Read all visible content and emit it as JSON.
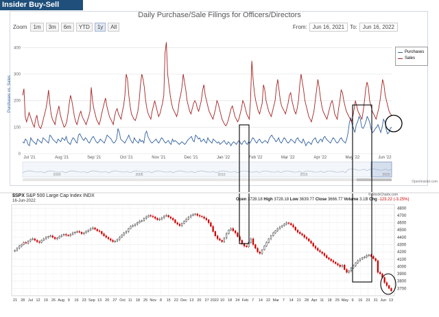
{
  "header": {
    "title": "Insider Buy-Sell Charts -"
  },
  "top_chart": {
    "title": "Daily Purchase/Sale Filings for Officers/Directors",
    "zoom_label": "Zoom",
    "zoom_buttons": [
      "1m",
      "3m",
      "6m",
      "YTD",
      "1y",
      "All"
    ],
    "zoom_selected": "1y",
    "from_label": "From:",
    "from_value": "Jun 16, 2021",
    "to_label": "To:",
    "to_value": "Jun 16, 2022",
    "ylabel": "Purchases vs. Sales",
    "source": "OpenInsider.com",
    "navigator_years": [
      "2000",
      "2005",
      "2010",
      "2015",
      "2020"
    ],
    "colors": {
      "purchases": "#2f5f9e",
      "sales": "#a51f1f"
    }
  },
  "lower_chart": {
    "symbol": "$SPX",
    "name": "S&P 500 Large Cap Index",
    "exchange": "INDX",
    "date": "16-Jun-2022",
    "open_label": "Open",
    "open": "3728.18",
    "high_label": "High",
    "high": "3728.18",
    "low_label": "Low",
    "low": "3639.77",
    "close_label": "Close",
    "close": "3666.77",
    "volume_label": "Volume",
    "volume": "3.1B",
    "change_label": "Chg",
    "change": "-123.22 (-3.25%)",
    "source": "© StockCharts.com",
    "colors": {
      "up": "#333333",
      "down": "#cc0000"
    }
  },
  "chart_data": [
    {
      "type": "line",
      "title": "Daily Purchase/Sale Filings for Officers/Directors",
      "ylabel": "Purchases vs. Sales",
      "ylim": [
        0,
        450
      ],
      "yticks": [
        0,
        100,
        200,
        300,
        400
      ],
      "x_ticks": [
        "Jul '21",
        "Aug '21",
        "Sep '21",
        "Oct '21",
        "Nov '21",
        "Dec '21",
        "Jan '22",
        "Feb '22",
        "Mar '22",
        "Apr '22",
        "May '22",
        "Jun '22"
      ],
      "legend": [
        "Purchases",
        "Sales"
      ],
      "legend_position": "top-right",
      "series": [
        {
          "name": "Purchases",
          "values": [
            45,
            40,
            55,
            50,
            35,
            30,
            60,
            50,
            45,
            40,
            35,
            55,
            50,
            45,
            40,
            60,
            55,
            50,
            45,
            40,
            70,
            65,
            55,
            50,
            45,
            40,
            55,
            50,
            45,
            60,
            55,
            50,
            65,
            45,
            40,
            35,
            50,
            60,
            55,
            45,
            40,
            70,
            75,
            65,
            55,
            50,
            60,
            55,
            45,
            40,
            50,
            60,
            65,
            55,
            45,
            40,
            45,
            55,
            50,
            45,
            40,
            55,
            70,
            65,
            60,
            55,
            45,
            40,
            45,
            55,
            95,
            80,
            55,
            50,
            45,
            40,
            50,
            60,
            70,
            55,
            45,
            40,
            60,
            50,
            45,
            40,
            55,
            45,
            50,
            40,
            75,
            85,
            65,
            55,
            45,
            40,
            45,
            50,
            55,
            45,
            40,
            50,
            60,
            55,
            45,
            40,
            45,
            50,
            40,
            35,
            55,
            45,
            50,
            45,
            40,
            35,
            40,
            45,
            40,
            35,
            40,
            50,
            55,
            60,
            65,
            50,
            45,
            70,
            65,
            55,
            60,
            45,
            50,
            55,
            45,
            40,
            60,
            50,
            45,
            40,
            55,
            50,
            45,
            40,
            45,
            35,
            40,
            45,
            50,
            40,
            35,
            45,
            40,
            30,
            40,
            45,
            40,
            35,
            45,
            50,
            40,
            35,
            45,
            50,
            40,
            35,
            45,
            40,
            50,
            60,
            55,
            45,
            40,
            50,
            55,
            45,
            40,
            45,
            50,
            45,
            40,
            55,
            65,
            70,
            60,
            55,
            45,
            50,
            60,
            45,
            40,
            50,
            60,
            55,
            45,
            40,
            45,
            55,
            50,
            45,
            40,
            55,
            60,
            50,
            45,
            40,
            55,
            45,
            30,
            40,
            45,
            40,
            35,
            50,
            55,
            60,
            45,
            40,
            50,
            55,
            45,
            60,
            65,
            55,
            50,
            45,
            40,
            50,
            60,
            55,
            45,
            40,
            45,
            55,
            60,
            50,
            45,
            40,
            55,
            80,
            120,
            135,
            110,
            95,
            80,
            110,
            120,
            140,
            130,
            100,
            95,
            105,
            120,
            140,
            130,
            115,
            90,
            80,
            85,
            95,
            100,
            110,
            95,
            80,
            100,
            130,
            120,
            90,
            75,
            80,
            95,
            100
          ]
        },
        {
          "name": "Sales",
          "values": [
            220,
            245,
            140,
            120,
            135,
            155,
            140,
            125,
            110,
            100,
            130,
            145,
            115,
            100,
            95,
            110,
            130,
            150,
            170,
            200,
            240,
            190,
            150,
            130,
            120,
            110,
            140,
            160,
            180,
            150,
            130,
            115,
            100,
            105,
            120,
            150,
            190,
            220,
            200,
            170,
            140,
            120,
            110,
            130,
            150,
            160,
            140,
            130,
            120,
            110,
            125,
            140,
            160,
            250,
            200,
            170,
            150,
            130,
            120,
            110,
            125,
            150,
            170,
            190,
            210,
            180,
            160,
            140,
            130,
            120,
            110,
            140,
            160,
            170,
            150,
            140,
            130,
            160,
            180,
            220,
            300,
            280,
            220,
            180,
            150,
            140,
            130,
            125,
            140,
            160,
            200,
            260,
            300,
            280,
            250,
            200,
            170,
            150,
            140,
            130,
            160,
            180,
            200,
            180,
            160,
            140,
            150,
            170,
            190,
            220,
            380,
            420,
            300,
            260,
            220,
            190,
            170,
            160,
            150,
            140,
            160,
            200,
            220,
            250,
            300,
            270,
            240,
            200,
            180,
            160,
            150,
            170,
            190,
            200,
            190,
            170,
            160,
            180,
            200,
            240,
            260,
            220,
            200,
            180,
            160,
            150,
            140,
            130,
            150,
            170,
            200,
            190,
            170,
            150,
            130,
            120,
            110,
            105,
            115,
            130,
            150,
            170,
            180,
            160,
            140,
            130,
            120,
            130,
            150,
            170,
            200,
            190,
            170,
            150,
            140,
            130,
            200,
            350,
            280,
            230,
            200,
            180,
            160,
            150,
            170,
            190,
            260,
            240,
            200,
            180,
            160,
            150,
            140,
            160,
            180,
            200,
            250,
            280,
            240,
            200,
            180,
            170,
            160,
            150,
            170,
            190,
            220,
            230,
            200,
            180,
            160,
            150,
            170,
            200,
            260,
            300,
            270,
            240,
            200,
            180,
            160,
            140,
            130,
            120,
            140,
            160,
            200,
            240,
            280,
            250,
            210,
            180,
            160,
            150,
            140,
            130,
            150,
            170,
            190,
            200,
            180,
            150,
            140,
            130,
            170,
            200,
            240,
            230,
            200,
            180,
            160,
            150,
            140,
            130,
            120,
            140,
            170,
            200,
            180,
            160,
            150,
            140,
            130,
            160,
            200,
            245,
            270,
            250,
            200,
            180,
            160,
            150,
            140,
            130,
            150,
            170,
            200,
            240,
            280,
            260,
            220,
            200,
            180,
            160,
            150,
            145
          ]
        }
      ]
    },
    {
      "type": "candlestick",
      "title": "$SPX S&P 500 Large Cap Index INDX",
      "ylim": [
        3600,
        4850
      ],
      "yticks": [
        3700,
        3800,
        3900,
        4000,
        4100,
        4200,
        4300,
        4400,
        4500,
        4600,
        4700,
        4800
      ],
      "x_ticks": [
        "21",
        "28",
        "Jul",
        "12",
        "19",
        "26",
        "Aug",
        "9",
        "16",
        "23",
        "Sep",
        "13",
        "20",
        "27",
        "Oct",
        "11",
        "18",
        "25",
        "Nov",
        "8",
        "15",
        "22",
        "Dec",
        "13",
        "20",
        "27",
        "2022",
        "10",
        "18",
        "24",
        "Feb",
        "7",
        "14",
        "22",
        "Mar",
        "7",
        "14",
        "21",
        "28",
        "Apr",
        "11",
        "18",
        "25",
        "May",
        "9",
        "16",
        "23",
        "31",
        "Jun",
        "13"
      ],
      "close": [
        4220,
        4250,
        4280,
        4300,
        4330,
        4320,
        4350,
        4370,
        4380,
        4360,
        4340,
        4330,
        4360,
        4380,
        4400,
        4410,
        4420,
        4400,
        4380,
        4390,
        4410,
        4430,
        4440,
        4430,
        4420,
        4440,
        4460,
        4470,
        4480,
        4470,
        4450,
        4460,
        4480,
        4500,
        4520,
        4530,
        4510,
        4490,
        4480,
        4450,
        4420,
        4400,
        4380,
        4360,
        4340,
        4350,
        4370,
        4400,
        4430,
        4460,
        4480,
        4520,
        4550,
        4560,
        4580,
        4600,
        4620,
        4630,
        4660,
        4680,
        4700,
        4690,
        4680,
        4660,
        4640,
        4650,
        4670,
        4690,
        4700,
        4680,
        4660,
        4640,
        4600,
        4580,
        4560,
        4590,
        4620,
        4650,
        4680,
        4700,
        4710,
        4720,
        4700,
        4690,
        4680,
        4660,
        4640,
        4600,
        4550,
        4480,
        4420,
        4380,
        4360,
        4340,
        4390,
        4450,
        4500,
        4520,
        4490,
        4460,
        4410,
        4360,
        4310,
        4280,
        4270,
        4330,
        4380,
        4300,
        4250,
        4200,
        4180,
        4230,
        4280,
        4330,
        4380,
        4420,
        4460,
        4490,
        4520,
        4540,
        4560,
        4580,
        4600,
        4590,
        4570,
        4540,
        4500,
        4470,
        4450,
        4430,
        4400,
        4380,
        4350,
        4320,
        4280,
        4250,
        4220,
        4200,
        4180,
        4150,
        4120,
        4100,
        4080,
        4060,
        4040,
        4020,
        4000,
        4020,
        3960,
        3920,
        3940,
        3980,
        4010,
        4050,
        4080,
        4100,
        4120,
        4130,
        4150,
        4160,
        4140,
        4110,
        4080,
        3920,
        3900,
        3850,
        3780,
        3740,
        3700,
        3667
      ]
    }
  ]
}
